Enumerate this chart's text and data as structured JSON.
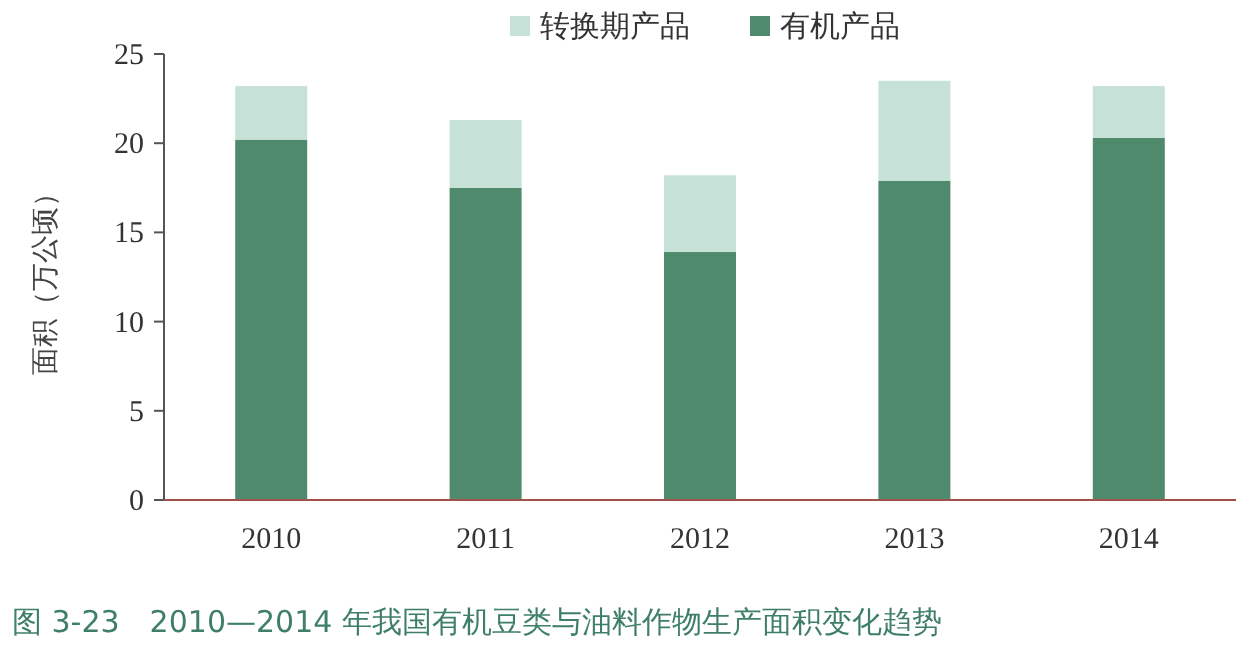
{
  "chart_data": {
    "type": "bar",
    "stacked": true,
    "ylabel": "面积（万公顷）",
    "categories": [
      "2010",
      "2011",
      "2012",
      "2013",
      "2014"
    ],
    "series": [
      {
        "name": "有机产品",
        "color": "#4f8a6c",
        "values": [
          20.2,
          17.5,
          13.9,
          17.9,
          20.3
        ]
      },
      {
        "name": "转换期产品",
        "color": "#c6e2d8",
        "values": [
          3.0,
          3.8,
          4.3,
          5.6,
          2.9
        ]
      }
    ],
    "ylim": [
      0,
      25
    ],
    "yticks": [
      0,
      5,
      10,
      15,
      20,
      25
    ],
    "legend": "top",
    "annotations": [
      "图 3-23　2010—2014 年我国有机豆类与油料作物生产面积变化趋势"
    ]
  }
}
